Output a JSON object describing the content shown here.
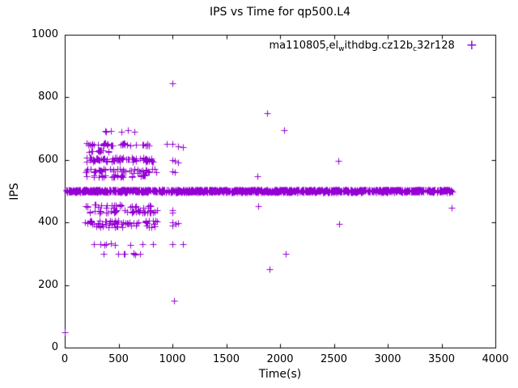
{
  "chart_data": {
    "type": "scatter",
    "title": "IPS vs Time for qp500.L4",
    "xlabel": "Time(s)",
    "ylabel": "IPS",
    "xlim": [
      0,
      4000
    ],
    "ylim": [
      0,
      1000
    ],
    "xticks": [
      "0",
      "500",
      "1000",
      "1500",
      "2000",
      "2500",
      "3000",
      "3500",
      "4000"
    ],
    "yticks": [
      "0",
      "200",
      "400",
      "600",
      "800",
      "1000"
    ],
    "grid": false,
    "legend": {
      "position": "top-right",
      "label": "ma110805_rel_withdbg.cz12b_c32r128",
      "segments": [
        {
          "t": "ma110805"
        },
        {
          "t": "r",
          "sub": true
        },
        {
          "t": "el"
        },
        {
          "t": "w",
          "sub": true
        },
        {
          "t": "ithdbg.cz12b"
        },
        {
          "t": "c",
          "sub": true
        },
        {
          "t": "32r128"
        }
      ],
      "marker_glyph": "+"
    },
    "marker": {
      "shape": "plus",
      "color": "#9400d3",
      "size": 4
    },
    "series": [
      {
        "name": "ma110805_rel_withdbg.cz12b_c32r128",
        "bands": [
          {
            "y": 501,
            "x0": 8,
            "x1": 3600,
            "count": 1400,
            "jy": 4
          }
        ],
        "clusters": [
          {
            "y": 693,
            "x0": 270,
            "x1": 840,
            "count": 6,
            "jy": 3
          },
          {
            "y": 650,
            "x0": 200,
            "x1": 580,
            "count": 26,
            "jy": 5
          },
          {
            "y": 648,
            "x0": 590,
            "x1": 840,
            "count": 8,
            "jy": 3
          },
          {
            "y": 628,
            "x0": 205,
            "x1": 420,
            "count": 14,
            "jy": 4
          },
          {
            "y": 600,
            "x0": 190,
            "x1": 830,
            "count": 70,
            "jy": 7
          },
          {
            "y": 565,
            "x0": 195,
            "x1": 860,
            "count": 45,
            "jy": 7
          },
          {
            "y": 548,
            "x0": 185,
            "x1": 800,
            "count": 30,
            "jy": 4
          },
          {
            "y": 452,
            "x0": 190,
            "x1": 860,
            "count": 26,
            "jy": 5
          },
          {
            "y": 435,
            "x0": 200,
            "x1": 860,
            "count": 40,
            "jy": 5
          },
          {
            "y": 400,
            "x0": 190,
            "x1": 860,
            "count": 50,
            "jy": 7
          },
          {
            "y": 388,
            "x0": 210,
            "x1": 840,
            "count": 16,
            "jy": 3
          },
          {
            "y": 330,
            "x0": 235,
            "x1": 835,
            "count": 9,
            "jy": 3
          },
          {
            "y": 300,
            "x0": 245,
            "x1": 710,
            "count": 8,
            "jy": 3
          }
        ],
        "points": [
          [
            0,
            50
          ],
          [
            949,
            650
          ],
          [
            1000,
            652
          ],
          [
            1052,
            643
          ],
          [
            1098,
            641
          ],
          [
            1000,
            845
          ],
          [
            998,
            600
          ],
          [
            1023,
            597
          ],
          [
            1049,
            592
          ],
          [
            1000,
            563
          ],
          [
            1022,
            560
          ],
          [
            1000,
            440
          ],
          [
            1002,
            432
          ],
          [
            1003,
            400
          ],
          [
            1031,
            396
          ],
          [
            1049,
            399
          ],
          [
            1001,
            389
          ],
          [
            999,
            330
          ],
          [
            1099,
            331
          ],
          [
            1013,
            150
          ],
          [
            1789,
            549
          ],
          [
            1797,
            451
          ],
          [
            1883,
            750
          ],
          [
            1902,
            250
          ],
          [
            2041,
            696
          ],
          [
            2052,
            300
          ],
          [
            2538,
            596
          ],
          [
            2547,
            396
          ],
          [
            3592,
            446
          ]
        ]
      }
    ]
  }
}
